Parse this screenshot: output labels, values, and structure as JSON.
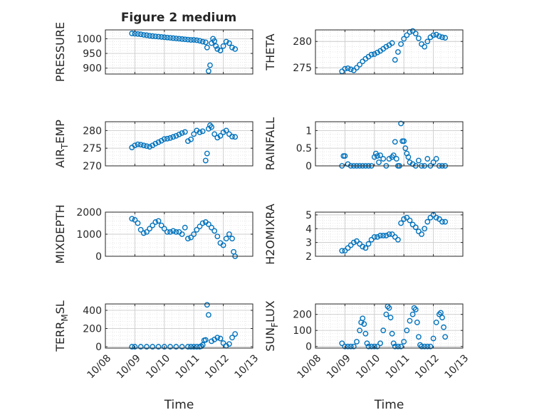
{
  "figure": {
    "title": "Figure 2 medium"
  },
  "chart_data": [
    {
      "type": "scatter",
      "ylabel": "PRESSURE",
      "xlabel": "",
      "ylim": [
        880,
        1030
      ],
      "yticks": [
        900,
        950,
        1000
      ],
      "x_range_days": [
        0,
        5
      ],
      "color": "#0072BD",
      "grid": "minor",
      "series": [
        {
          "x": [
            0.9,
            1.0,
            1.1,
            1.2,
            1.3,
            1.4,
            1.5,
            1.6,
            1.7,
            1.8,
            1.9,
            2.0,
            2.1,
            2.2,
            2.3,
            2.4,
            2.5,
            2.6,
            2.7,
            2.8,
            2.9,
            3.0,
            3.1,
            3.2,
            3.3,
            3.4,
            3.45,
            3.5,
            3.55,
            3.6,
            3.65,
            3.7,
            3.75,
            3.8,
            3.9,
            4.0,
            4.1,
            4.2,
            4.3,
            4.4
          ],
          "y": [
            1018,
            1017,
            1016,
            1015,
            1013,
            1012,
            1010,
            1009,
            1008,
            1007,
            1006,
            1005,
            1004,
            1003,
            1002,
            1001,
            1000,
            999,
            998,
            997,
            996,
            996,
            995,
            993,
            990,
            988,
            970,
            890,
            910,
            985,
            1000,
            992,
            975,
            965,
            960,
            975,
            990,
            985,
            970,
            965
          ]
        }
      ]
    },
    {
      "type": "scatter",
      "ylabel": "THETA",
      "xlabel": "",
      "ylim": [
        273.8,
        282.2
      ],
      "yticks": [
        275,
        280
      ],
      "x_range_days": [
        0,
        5
      ],
      "color": "#0072BD",
      "grid": "minor",
      "series": [
        {
          "x": [
            0.9,
            1.0,
            1.1,
            1.2,
            1.3,
            1.4,
            1.5,
            1.6,
            1.7,
            1.8,
            1.9,
            2.0,
            2.1,
            2.2,
            2.3,
            2.4,
            2.5,
            2.6,
            2.7,
            2.8,
            2.9,
            3.0,
            3.1,
            3.2,
            3.3,
            3.4,
            3.5,
            3.6,
            3.7,
            3.8,
            3.9,
            4.0,
            4.1,
            4.2,
            4.3,
            4.4
          ],
          "y": [
            274.3,
            274.8,
            274.9,
            274.7,
            274.5,
            275.0,
            275.6,
            276.2,
            276.7,
            277.1,
            277.5,
            277.6,
            277.9,
            278.2,
            278.6,
            279.0,
            279.3,
            279.7,
            276.5,
            278.0,
            279.5,
            280.5,
            281.2,
            281.8,
            282.0,
            281.5,
            280.6,
            279.5,
            279.0,
            280.0,
            280.8,
            281.2,
            281.3,
            281.0,
            280.8,
            280.7
          ]
        }
      ]
    },
    {
      "type": "scatter",
      "ylabel": "AIR_TEMP",
      "xlabel": "",
      "ylim": [
        270,
        282.5
      ],
      "yticks": [
        270,
        275,
        280
      ],
      "x_range_days": [
        0,
        5
      ],
      "color": "#0072BD",
      "grid": "minor",
      "series": [
        {
          "x": [
            0.9,
            1.0,
            1.1,
            1.2,
            1.3,
            1.4,
            1.5,
            1.6,
            1.7,
            1.8,
            1.9,
            2.0,
            2.1,
            2.2,
            2.3,
            2.4,
            2.5,
            2.6,
            2.7,
            2.8,
            2.9,
            3.0,
            3.1,
            3.2,
            3.3,
            3.4,
            3.45,
            3.5,
            3.55,
            3.6,
            3.7,
            3.8,
            3.9,
            4.0,
            4.1,
            4.2,
            4.3,
            4.4
          ],
          "y": [
            275.2,
            275.8,
            276.1,
            276.0,
            275.8,
            275.6,
            275.4,
            275.8,
            276.3,
            276.7,
            277.1,
            277.6,
            277.7,
            277.9,
            278.2,
            278.5,
            278.9,
            279.3,
            279.6,
            277.0,
            277.5,
            279.0,
            280.0,
            279.5,
            279.8,
            271.5,
            273.5,
            280.5,
            281.5,
            281.0,
            279.0,
            278.0,
            278.5,
            279.5,
            280.0,
            279.0,
            278.3,
            278.2
          ]
        }
      ]
    },
    {
      "type": "scatter",
      "ylabel": "RAINFALL",
      "xlabel": "",
      "ylim": [
        0,
        1.25
      ],
      "yticks": [
        0,
        0.5,
        1
      ],
      "x_range_days": [
        0,
        5
      ],
      "color": "#0072BD",
      "grid": "minor",
      "series": [
        {
          "x": [
            0.9,
            0.95,
            1.0,
            1.1,
            1.2,
            1.3,
            1.4,
            1.5,
            1.6,
            1.7,
            1.8,
            1.9,
            2.0,
            2.05,
            2.1,
            2.15,
            2.2,
            2.3,
            2.4,
            2.5,
            2.6,
            2.65,
            2.7,
            2.75,
            2.8,
            2.85,
            2.9,
            2.95,
            3.0,
            3.05,
            3.1,
            3.15,
            3.2,
            3.3,
            3.4,
            3.5,
            3.6,
            3.7,
            3.8,
            3.9,
            4.0,
            4.1,
            4.2,
            4.3,
            4.4
          ],
          "y": [
            0,
            0.28,
            0.28,
            0.05,
            0,
            0,
            0,
            0,
            0,
            0,
            0,
            0,
            0.25,
            0.35,
            0.28,
            0.1,
            0.3,
            0.2,
            0,
            0.2,
            0.25,
            0.3,
            0.68,
            0.2,
            0,
            0,
            1.2,
            0.7,
            0.7,
            0.5,
            0.35,
            0.25,
            0.1,
            0.05,
            0,
            0.15,
            0,
            0,
            0.2,
            0,
            0.1,
            0.2,
            0,
            0,
            0
          ]
        }
      ]
    },
    {
      "type": "scatter",
      "ylabel": "MIXDEPTH",
      "xlabel": "",
      "ylim": [
        0,
        2000
      ],
      "yticks": [
        0,
        1000,
        2000
      ],
      "x_range_days": [
        0,
        5
      ],
      "color": "#0072BD",
      "grid": "minor",
      "series": [
        {
          "x": [
            0.9,
            1.0,
            1.1,
            1.2,
            1.3,
            1.4,
            1.5,
            1.6,
            1.7,
            1.8,
            1.9,
            2.0,
            2.1,
            2.2,
            2.3,
            2.4,
            2.5,
            2.6,
            2.7,
            2.8,
            2.9,
            3.0,
            3.1,
            3.2,
            3.3,
            3.4,
            3.5,
            3.6,
            3.7,
            3.8,
            3.9,
            4.0,
            4.1,
            4.2,
            4.3,
            4.35,
            4.4
          ],
          "y": [
            1700,
            1650,
            1500,
            1200,
            1050,
            1100,
            1250,
            1400,
            1550,
            1600,
            1400,
            1250,
            1100,
            1100,
            1150,
            1100,
            1100,
            1000,
            1300,
            800,
            850,
            1000,
            1200,
            1350,
            1500,
            1550,
            1450,
            1300,
            1150,
            900,
            600,
            500,
            800,
            1000,
            800,
            200,
            0
          ]
        }
      ]
    },
    {
      "type": "scatter",
      "ylabel": "H2OMIXRA",
      "xlabel": "",
      "ylim": [
        2,
        5.2
      ],
      "yticks": [
        2,
        3,
        4,
        5
      ],
      "x_range_days": [
        0,
        5
      ],
      "color": "#0072BD",
      "grid": "minor",
      "series": [
        {
          "x": [
            0.9,
            1.0,
            1.1,
            1.2,
            1.3,
            1.4,
            1.5,
            1.6,
            1.7,
            1.8,
            1.9,
            2.0,
            2.1,
            2.2,
            2.3,
            2.4,
            2.5,
            2.6,
            2.7,
            2.8,
            2.9,
            3.0,
            3.1,
            3.2,
            3.3,
            3.4,
            3.5,
            3.6,
            3.7,
            3.8,
            3.9,
            4.0,
            4.1,
            4.2,
            4.3,
            4.4
          ],
          "y": [
            2.4,
            2.4,
            2.6,
            2.8,
            3.0,
            3.1,
            2.9,
            2.7,
            2.6,
            2.9,
            3.2,
            3.4,
            3.4,
            3.5,
            3.5,
            3.5,
            3.6,
            3.6,
            3.4,
            3.2,
            4.4,
            4.7,
            4.8,
            4.6,
            4.3,
            4.1,
            3.8,
            3.6,
            4.0,
            4.5,
            4.8,
            5.0,
            4.8,
            4.7,
            4.5,
            4.5
          ]
        }
      ]
    },
    {
      "type": "scatter",
      "ylabel": "TERR_MSL",
      "xlabel": "Time",
      "ylim": [
        -15,
        470
      ],
      "yticks": [
        0,
        200,
        400
      ],
      "x_range_days": [
        0,
        5
      ],
      "color": "#0072BD",
      "grid": "minor",
      "series": [
        {
          "x": [
            0.9,
            1.0,
            1.2,
            1.4,
            1.6,
            1.8,
            2.0,
            2.2,
            2.4,
            2.6,
            2.8,
            2.9,
            3.0,
            3.1,
            3.2,
            3.25,
            3.3,
            3.35,
            3.4,
            3.45,
            3.5,
            3.6,
            3.7,
            3.8,
            3.9,
            4.0,
            4.1,
            4.2,
            4.3,
            4.4
          ],
          "y": [
            0,
            0,
            0,
            0,
            0,
            0,
            0,
            0,
            0,
            0,
            0,
            0,
            0,
            0,
            0,
            5,
            20,
            70,
            75,
            460,
            350,
            60,
            80,
            100,
            90,
            40,
            10,
            30,
            100,
            140
          ]
        }
      ]
    },
    {
      "type": "scatter",
      "ylabel": "SUN_FLUX",
      "xlabel": "Time",
      "ylim": [
        -10,
        265
      ],
      "yticks": [
        0,
        100,
        200
      ],
      "x_range_days": [
        0,
        5
      ],
      "color": "#0072BD",
      "grid": "minor",
      "series": [
        {
          "x": [
            0.9,
            1.0,
            1.1,
            1.2,
            1.3,
            1.4,
            1.5,
            1.55,
            1.6,
            1.65,
            1.7,
            1.75,
            1.8,
            1.9,
            2.0,
            2.1,
            2.2,
            2.3,
            2.4,
            2.45,
            2.5,
            2.55,
            2.6,
            2.65,
            2.7,
            2.8,
            2.9,
            3.0,
            3.1,
            3.2,
            3.3,
            3.35,
            3.4,
            3.45,
            3.5,
            3.55,
            3.6,
            3.7,
            3.8,
            3.9,
            4.0,
            4.1,
            4.2,
            4.25,
            4.3,
            4.35,
            4.4
          ],
          "y": [
            20,
            0,
            0,
            0,
            0,
            30,
            100,
            150,
            175,
            140,
            80,
            20,
            0,
            0,
            0,
            0,
            20,
            100,
            200,
            250,
            240,
            180,
            80,
            20,
            0,
            0,
            0,
            30,
            100,
            160,
            200,
            240,
            230,
            150,
            60,
            10,
            0,
            0,
            0,
            0,
            50,
            150,
            200,
            210,
            180,
            120,
            60
          ]
        }
      ]
    }
  ],
  "x_axis": {
    "tick_labels": [
      "10/08",
      "10/09",
      "10/10",
      "10/11",
      "10/12",
      "10/13"
    ]
  }
}
